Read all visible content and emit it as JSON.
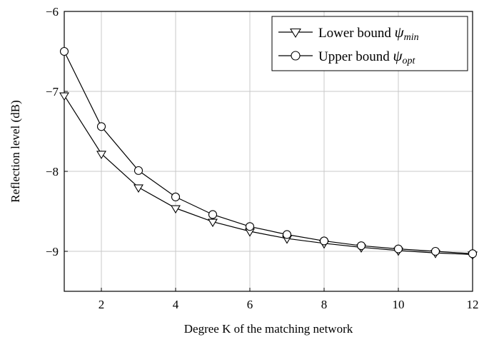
{
  "chart_data": {
    "type": "line",
    "xlabel": "Degree K of the matching network",
    "ylabel": "Reflection level (dB)",
    "xlim": [
      1,
      12
    ],
    "ylim": [
      -9.5,
      -6
    ],
    "xticks": [
      2,
      4,
      6,
      8,
      10,
      12
    ],
    "yticks": [
      -6,
      -7,
      -8,
      -9
    ],
    "xtick_labels": [
      "2",
      "4",
      "6",
      "8",
      "10",
      "12"
    ],
    "ytick_labels": [
      "−6",
      "−7",
      "−8",
      "−9"
    ],
    "grid": true,
    "legend_position": "top-right",
    "x": [
      1,
      2,
      3,
      4,
      5,
      6,
      7,
      8,
      9,
      10,
      11,
      12
    ],
    "series": [
      {
        "name": "Lower bound",
        "symbol": "ψ",
        "subscript": "min",
        "marker": "triangle-down",
        "values": [
          -7.05,
          -7.78,
          -8.2,
          -8.46,
          -8.63,
          -8.75,
          -8.84,
          -8.9,
          -8.95,
          -8.99,
          -9.02,
          -9.04
        ]
      },
      {
        "name": "Upper bound",
        "symbol": "ψ",
        "subscript": "opt",
        "marker": "circle",
        "values": [
          -6.5,
          -7.44,
          -7.99,
          -8.32,
          -8.54,
          -8.69,
          -8.79,
          -8.87,
          -8.93,
          -8.97,
          -9.0,
          -9.03
        ]
      }
    ]
  }
}
